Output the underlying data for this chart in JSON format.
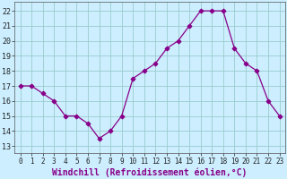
{
  "x": [
    0,
    1,
    2,
    3,
    4,
    5,
    6,
    7,
    8,
    9,
    10,
    11,
    12,
    13,
    14,
    15,
    16,
    17,
    18,
    19,
    20,
    21,
    22,
    23
  ],
  "y": [
    17,
    17,
    16.5,
    16,
    15,
    15,
    14.5,
    13.5,
    14,
    15,
    17.5,
    18,
    18.5,
    19.5,
    20,
    21,
    22,
    22,
    22,
    19.5,
    18.5,
    18,
    16,
    15
  ],
  "line_color": "#880088",
  "marker": "D",
  "marker_size": 2.5,
  "bg_color": "#cceeff",
  "grid_color": "#99cccc",
  "xlabel": "Windchill (Refroidissement éolien,°C)",
  "xlabel_fontsize": 7,
  "xlabel_color": "#880088",
  "ytick_labels": [
    "13",
    "14",
    "15",
    "16",
    "17",
    "18",
    "19",
    "20",
    "21",
    "22"
  ],
  "ylim": [
    12.5,
    22.6
  ],
  "xlim": [
    -0.5,
    23.5
  ],
  "xtick_fontsize": 5.5,
  "ytick_fontsize": 6,
  "tick_color": "#222222"
}
